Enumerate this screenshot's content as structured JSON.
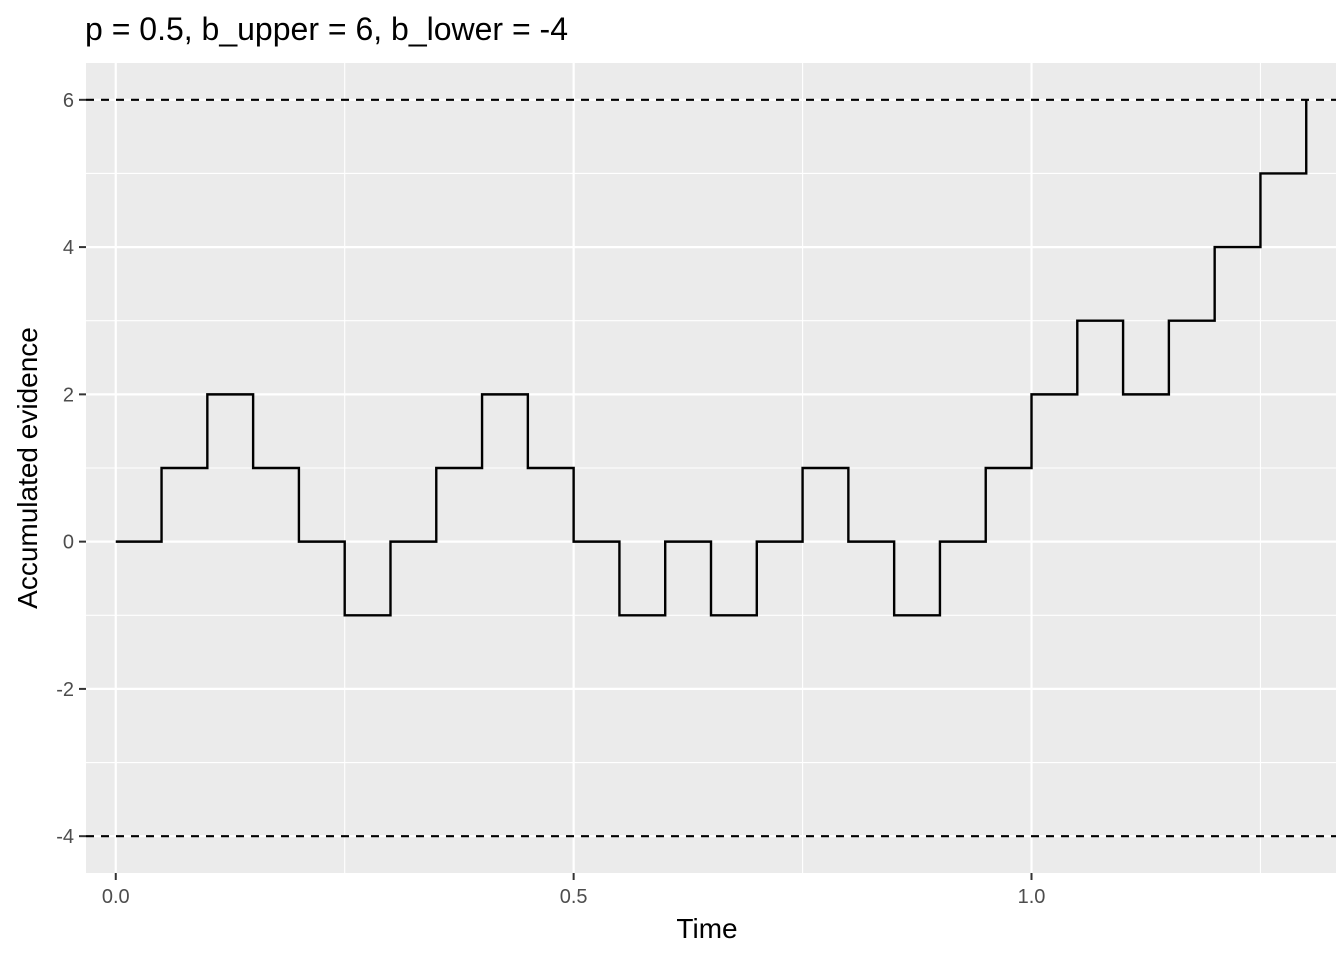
{
  "chart_data": {
    "type": "line",
    "subtype": "step",
    "title": "p = 0.5, b_upper = 6, b_lower = -4",
    "xlabel": "Time",
    "ylabel": "Accumulated evidence",
    "xlim": [
      -0.0325,
      1.3325
    ],
    "ylim": [
      -4.5,
      6.5
    ],
    "x_ticks": [
      0.0,
      0.5,
      1.0
    ],
    "x_tick_labels": [
      "0.0",
      "0.5",
      "1.0"
    ],
    "x_minor_ticks": [
      0.25,
      0.75,
      1.25
    ],
    "y_ticks": [
      -4,
      -2,
      0,
      2,
      4,
      6
    ],
    "y_tick_labels": [
      "-4",
      "-2",
      "0",
      "2",
      "4",
      "6"
    ],
    "y_minor_ticks": [
      -5,
      -3,
      -1,
      1,
      3,
      5
    ],
    "grid": true,
    "boundaries": [
      {
        "label": "b_upper",
        "value": 6,
        "style": "dashed"
      },
      {
        "label": "b_lower",
        "value": -4,
        "style": "dashed"
      }
    ],
    "series": [
      {
        "x": [
          0.0,
          0.05,
          0.1,
          0.15,
          0.2,
          0.25,
          0.3,
          0.35,
          0.4,
          0.45,
          0.5,
          0.55,
          0.6,
          0.65,
          0.7,
          0.75,
          0.8,
          0.85,
          0.9,
          0.95,
          1.0,
          1.05,
          1.1,
          1.15,
          1.2,
          1.25,
          1.3
        ],
        "values": [
          0,
          1,
          2,
          1,
          0,
          -1,
          0,
          1,
          2,
          1,
          0,
          -1,
          0,
          -1,
          0,
          1,
          0,
          -1,
          0,
          1,
          2,
          3,
          2,
          3,
          4,
          5,
          6
        ]
      }
    ],
    "colors": {
      "panel_background": "#ebebeb",
      "grid": "#ffffff",
      "line": "#000000",
      "tick_label": "#4d4d4d"
    }
  }
}
